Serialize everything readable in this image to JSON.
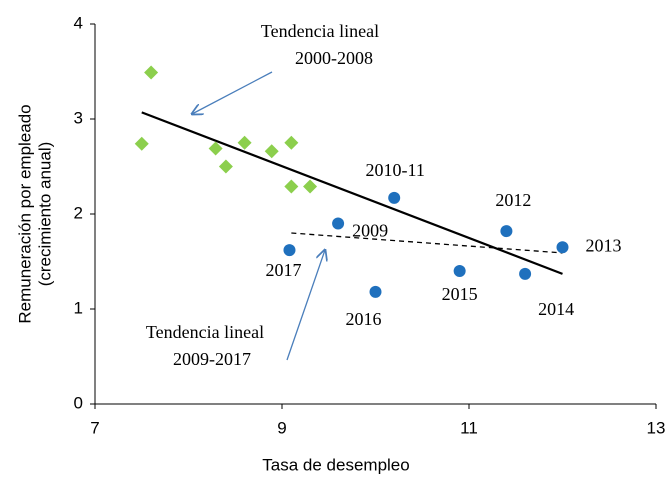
{
  "chart_data": {
    "type": "scatter",
    "xlabel": "Tasa de desempleo",
    "ylabel": [
      "Remuneración por empleado",
      "(crecimiento anual)"
    ],
    "xlim": [
      7,
      13
    ],
    "xticks": [
      7,
      9,
      11,
      13
    ],
    "ylim": [
      0,
      4
    ],
    "yticks": [
      0,
      1,
      2,
      3,
      4
    ],
    "series": [
      {
        "name": "2000-2008",
        "color": "#8ccf4d",
        "marker": "diamond",
        "x": [
          7.5,
          7.6,
          8.29,
          8.4,
          8.6,
          8.89,
          9.1,
          9.1,
          9.3
        ],
        "values": [
          2.74,
          3.49,
          2.69,
          2.5,
          2.75,
          2.66,
          2.75,
          2.29,
          2.29
        ]
      },
      {
        "name": "2009-2017",
        "color": "#1f70bd",
        "marker": "circle",
        "labels": [
          "2017",
          "2009",
          "2010-11",
          "2016",
          "2015",
          "2012",
          "2014",
          "2013"
        ],
        "x": [
          9.08,
          9.6,
          10.2,
          10.0,
          10.9,
          11.4,
          11.6,
          12.0
        ],
        "values": [
          1.62,
          1.9,
          2.17,
          1.18,
          1.4,
          1.82,
          1.37,
          1.65
        ]
      }
    ],
    "trendlines": [
      {
        "x": [
          7.5,
          12
        ],
        "values": [
          3.07,
          1.37
        ],
        "dashed": false
      },
      {
        "x": [
          9.1,
          12
        ],
        "values": [
          1.8,
          1.59
        ],
        "dashed": true
      }
    ],
    "annotations": [
      [
        "Tendencia lineal",
        "2000-2008"
      ],
      [
        "Tendencia lineal",
        "2009-2017"
      ]
    ]
  }
}
